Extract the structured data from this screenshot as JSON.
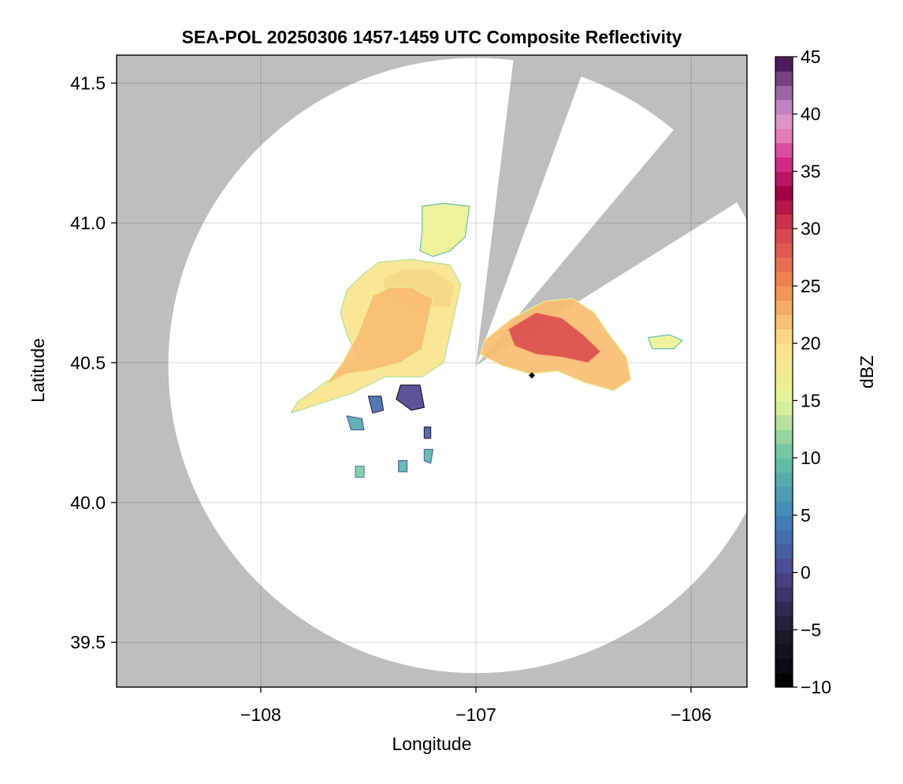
{
  "chart_data": {
    "type": "heatmap",
    "title": "SEA-POL 20250306 1457-1459 UTC Composite Reflectivity",
    "xlabel": "Longitude",
    "ylabel": "Latitude",
    "xlim": [
      -108.67,
      -105.74
    ],
    "ylim": [
      39.34,
      41.6
    ],
    "x_ticks": [
      -108,
      -107,
      -106
    ],
    "x_tick_labels": [
      "−108",
      "−107",
      "−106"
    ],
    "y_ticks": [
      39.5,
      40.0,
      40.5,
      41.0,
      41.5
    ],
    "y_tick_labels": [
      "39.5",
      "40.0",
      "40.5",
      "41.0",
      "41.5"
    ],
    "grid": true,
    "background_color": "#bebebe",
    "coverage_color": "#ffffff",
    "radar": {
      "center": [
        -107.0,
        40.49
      ],
      "range_lat_deg": 1.1,
      "blocked_sectors": [
        [
          7,
          20
        ],
        [
          40,
          58
        ]
      ]
    },
    "marker": {
      "lon": -106.74,
      "lat": 40.455,
      "shape": "diamond",
      "color": "#000000"
    },
    "colorbar": {
      "label": "dBZ",
      "min": -10,
      "max": 45,
      "step": 1.25,
      "ticks": [
        -10,
        -5,
        0,
        5,
        10,
        15,
        20,
        25,
        30,
        35,
        40,
        45
      ],
      "tick_labels": [
        "−10",
        "−5",
        "0",
        "5",
        "10",
        "15",
        "20",
        "25",
        "30",
        "35",
        "40",
        "45"
      ],
      "colormap_stops": [
        {
          "v": -10,
          "c": "#000004"
        },
        {
          "v": -5,
          "c": "#1e1b2e"
        },
        {
          "v": 0,
          "c": "#4e4590"
        },
        {
          "v": 5,
          "c": "#3f86bd"
        },
        {
          "v": 10,
          "c": "#66c2a5"
        },
        {
          "v": 15,
          "c": "#e6f598"
        },
        {
          "v": 20,
          "c": "#fee08b"
        },
        {
          "v": 25,
          "c": "#f08c4f"
        },
        {
          "v": 30,
          "c": "#d53e4f"
        },
        {
          "v": 33,
          "c": "#9e0142"
        },
        {
          "v": 36,
          "c": "#d6308f"
        },
        {
          "v": 39,
          "c": "#e89ac8"
        },
        {
          "v": 41,
          "c": "#b77fc0"
        },
        {
          "v": 45,
          "c": "#3b0a4a"
        }
      ]
    },
    "echo_regions": [
      {
        "name": "northwest-band-core",
        "points": [
          [
            -107.43,
            40.8
          ],
          [
            -107.35,
            40.83
          ],
          [
            -107.2,
            40.83
          ],
          [
            -107.1,
            40.78
          ],
          [
            -107.12,
            40.7
          ],
          [
            -107.28,
            40.7
          ],
          [
            -107.42,
            40.74
          ]
        ],
        "dbz": 29
      },
      {
        "name": "northwest-band-body",
        "points": [
          [
            -107.52,
            40.82
          ],
          [
            -107.45,
            40.86
          ],
          [
            -107.3,
            40.87
          ],
          [
            -107.12,
            40.85
          ],
          [
            -107.07,
            40.78
          ],
          [
            -107.15,
            40.5
          ],
          [
            -107.25,
            40.45
          ],
          [
            -107.42,
            40.45
          ],
          [
            -107.58,
            40.39
          ],
          [
            -107.74,
            40.35
          ],
          [
            -107.86,
            40.32
          ],
          [
            -107.83,
            40.36
          ],
          [
            -107.68,
            40.44
          ],
          [
            -107.55,
            40.52
          ],
          [
            -107.6,
            40.6
          ],
          [
            -107.63,
            40.68
          ],
          [
            -107.6,
            40.76
          ]
        ],
        "dbz": 19
      },
      {
        "name": "northwest-band-edge",
        "points": [
          [
            -107.48,
            40.74
          ],
          [
            -107.4,
            40.77
          ],
          [
            -107.3,
            40.77
          ],
          [
            -107.2,
            40.73
          ],
          [
            -107.25,
            40.55
          ],
          [
            -107.35,
            40.5
          ],
          [
            -107.5,
            40.47
          ],
          [
            -107.6,
            40.46
          ],
          [
            -107.7,
            40.42
          ],
          [
            -107.62,
            40.5
          ],
          [
            -107.55,
            40.6
          ]
        ],
        "dbz": 22
      },
      {
        "name": "north-cell",
        "points": [
          [
            -107.25,
            41.06
          ],
          [
            -107.15,
            41.07
          ],
          [
            -107.03,
            41.06
          ],
          [
            -107.05,
            40.95
          ],
          [
            -107.12,
            40.9
          ],
          [
            -107.2,
            40.88
          ],
          [
            -107.26,
            40.9
          ],
          [
            -107.25,
            40.97
          ]
        ],
        "dbz": 16
      },
      {
        "name": "east-cell-body",
        "points": [
          [
            -106.96,
            40.58
          ],
          [
            -106.83,
            40.66
          ],
          [
            -106.68,
            40.72
          ],
          [
            -106.55,
            40.73
          ],
          [
            -106.45,
            40.68
          ],
          [
            -106.38,
            40.6
          ],
          [
            -106.3,
            40.52
          ],
          [
            -106.28,
            40.44
          ],
          [
            -106.36,
            40.4
          ],
          [
            -106.5,
            40.43
          ],
          [
            -106.62,
            40.47
          ],
          [
            -106.75,
            40.46
          ],
          [
            -106.88,
            40.49
          ],
          [
            -106.98,
            40.53
          ]
        ],
        "dbz": 22
      },
      {
        "name": "east-cell-core",
        "points": [
          [
            -106.85,
            40.62
          ],
          [
            -106.72,
            40.68
          ],
          [
            -106.6,
            40.66
          ],
          [
            -106.5,
            40.6
          ],
          [
            -106.42,
            40.54
          ],
          [
            -106.48,
            40.5
          ],
          [
            -106.6,
            40.52
          ],
          [
            -106.72,
            40.53
          ],
          [
            -106.82,
            40.56
          ]
        ],
        "dbz": 29
      },
      {
        "name": "east-small-cell",
        "points": [
          [
            -106.2,
            40.59
          ],
          [
            -106.1,
            40.6
          ],
          [
            -106.04,
            40.58
          ],
          [
            -106.08,
            40.55
          ],
          [
            -106.18,
            40.55
          ]
        ],
        "dbz": 16
      },
      {
        "name": "south-weak-echo-1",
        "points": [
          [
            -107.35,
            40.42
          ],
          [
            -107.26,
            40.42
          ],
          [
            -107.24,
            40.34
          ],
          [
            -107.3,
            40.33
          ],
          [
            -107.37,
            40.37
          ]
        ],
        "dbz": 0
      },
      {
        "name": "south-weak-echo-2",
        "points": [
          [
            -107.5,
            40.38
          ],
          [
            -107.44,
            40.38
          ],
          [
            -107.43,
            40.33
          ],
          [
            -107.48,
            40.32
          ]
        ],
        "dbz": 3
      },
      {
        "name": "south-weak-echo-3",
        "points": [
          [
            -107.6,
            40.31
          ],
          [
            -107.53,
            40.3
          ],
          [
            -107.52,
            40.26
          ],
          [
            -107.58,
            40.26
          ]
        ],
        "dbz": 8
      },
      {
        "name": "south-weak-echo-4",
        "points": [
          [
            -107.24,
            40.27
          ],
          [
            -107.21,
            40.27
          ],
          [
            -107.21,
            40.23
          ],
          [
            -107.24,
            40.23
          ]
        ],
        "dbz": 2
      },
      {
        "name": "south-weak-echo-5",
        "points": [
          [
            -107.24,
            40.19
          ],
          [
            -107.2,
            40.19
          ],
          [
            -107.21,
            40.14
          ],
          [
            -107.24,
            40.15
          ]
        ],
        "dbz": 9
      },
      {
        "name": "south-weak-echo-6",
        "points": [
          [
            -107.56,
            40.13
          ],
          [
            -107.52,
            40.13
          ],
          [
            -107.52,
            40.09
          ],
          [
            -107.56,
            40.09
          ]
        ],
        "dbz": 11
      },
      {
        "name": "south-weak-echo-7",
        "points": [
          [
            -107.36,
            40.15
          ],
          [
            -107.32,
            40.15
          ],
          [
            -107.32,
            40.11
          ],
          [
            -107.36,
            40.11
          ]
        ],
        "dbz": 9
      }
    ]
  }
}
